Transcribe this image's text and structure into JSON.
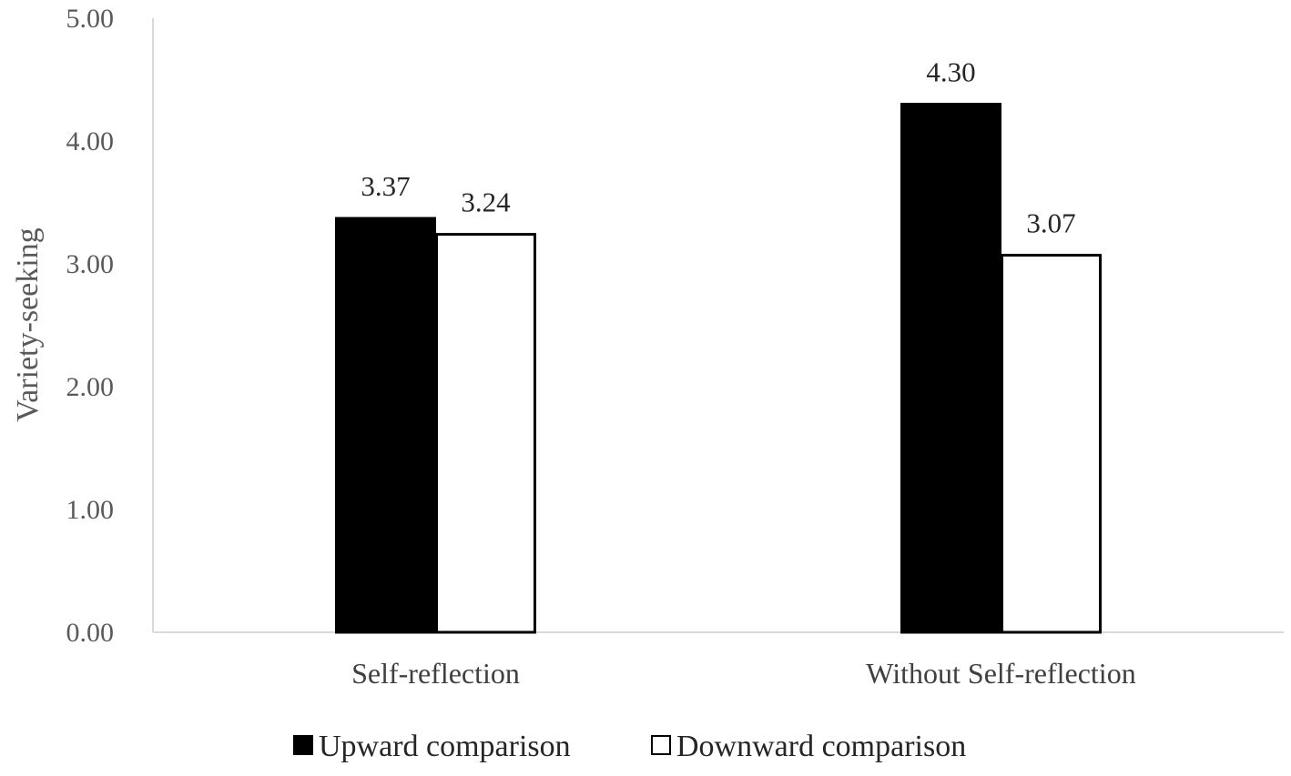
{
  "chart_data": {
    "type": "bar",
    "title": "",
    "xlabel": "",
    "ylabel": "Variety-seeking",
    "ylim": [
      0,
      5
    ],
    "yticks": [
      "0.00",
      "1.00",
      "2.00",
      "3.00",
      "4.00",
      "5.00"
    ],
    "categories": [
      "Self-reflection",
      "Without Self-reflection"
    ],
    "series": [
      {
        "name": "Upward comparison",
        "values": [
          3.37,
          4.3
        ],
        "labels": [
          "3.37",
          "4.30"
        ],
        "fill": "#000000"
      },
      {
        "name": "Downward comparison",
        "values": [
          3.24,
          3.07
        ],
        "labels": [
          "3.24",
          "3.07"
        ],
        "fill": "#ffffff"
      }
    ],
    "grid": false,
    "legend_position": "bottom"
  },
  "colors": {
    "axis": "#d9d9d9",
    "bar_outline": "#000000"
  }
}
